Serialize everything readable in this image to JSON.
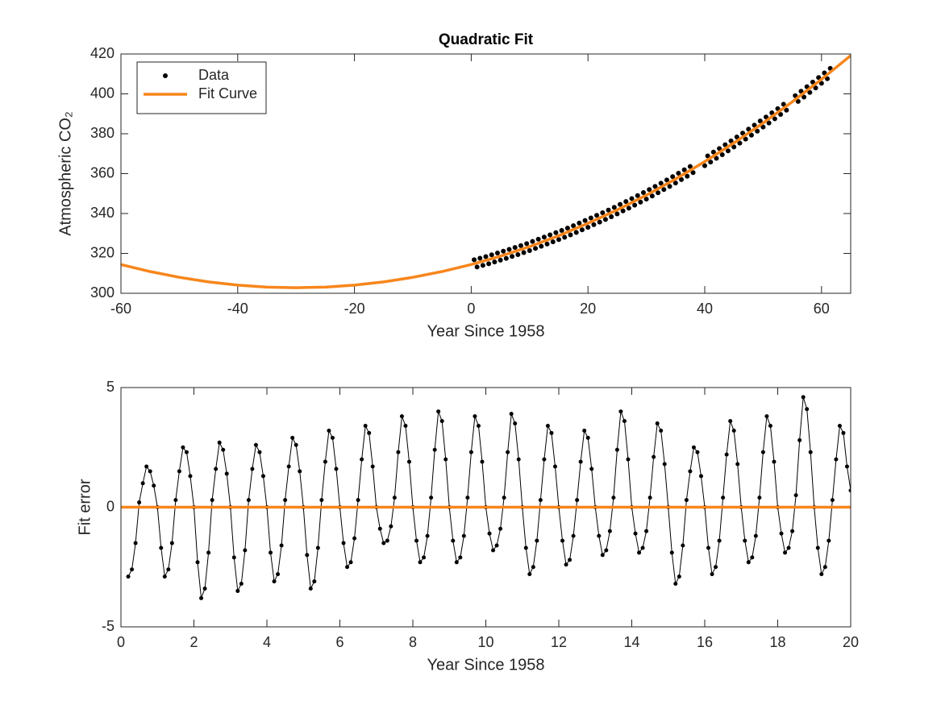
{
  "chart_data": [
    {
      "type": "line",
      "title": "Quadratic Fit",
      "xlabel": "Year Since 1958",
      "ylabel": "Atmospheric CO₂",
      "xlim": [
        -60,
        65
      ],
      "ylim": [
        300,
        420
      ],
      "xticks": [
        -60,
        -40,
        -20,
        0,
        20,
        40,
        60
      ],
      "yticks": [
        300,
        320,
        340,
        360,
        380,
        400,
        420
      ],
      "legend": "upper left",
      "series": [
        {
          "name": "Data",
          "color": "#000000",
          "mode": "markers",
          "x": [
            0.5,
            1,
            1.5,
            2,
            2.5,
            3,
            3.5,
            4,
            4.5,
            5,
            5.5,
            6,
            6.5,
            7,
            7.5,
            8,
            8.5,
            9,
            9.5,
            10,
            10.5,
            11,
            11.5,
            12,
            12.5,
            13,
            13.5,
            14,
            14.5,
            15,
            15.5,
            16,
            16.5,
            17,
            17.5,
            18,
            18.5,
            19,
            19.5,
            20,
            20.5,
            21,
            21.5,
            22,
            22.5,
            23,
            23.5,
            24,
            24.5,
            25,
            25.5,
            26,
            26.5,
            27,
            27.5,
            28,
            28.5,
            29,
            29.5,
            30,
            30.5,
            31,
            31.5,
            32,
            32.5,
            33,
            33.5,
            34,
            34.5,
            35,
            35.5,
            36,
            36.5,
            37,
            37.5,
            38,
            40,
            40.5,
            41,
            41.5,
            42,
            42.5,
            43,
            43.5,
            44,
            44.5,
            45,
            45.5,
            46,
            46.5,
            47,
            47.5,
            48,
            48.5,
            49,
            49.5,
            50,
            50.5,
            51,
            51.5,
            52,
            52.5,
            53,
            53.5,
            54,
            55.5,
            56,
            56.5,
            57,
            57.5,
            58,
            58.5,
            59,
            59.5,
            60,
            60.5,
            61,
            61.5
          ],
          "values": [
            316.8,
            313.2,
            317.6,
            314.0,
            318.4,
            314.8,
            319.3,
            315.7,
            320.2,
            316.6,
            321.1,
            317.5,
            322.0,
            318.5,
            323.0,
            319.4,
            323.9,
            320.4,
            324.9,
            321.4,
            326.0,
            322.5,
            327.1,
            323.6,
            328.2,
            324.7,
            329.3,
            325.8,
            330.4,
            326.9,
            331.5,
            328.1,
            332.7,
            329.3,
            333.9,
            330.5,
            335.2,
            331.8,
            336.5,
            333.1,
            337.8,
            334.4,
            339.1,
            335.7,
            340.4,
            337.0,
            341.7,
            338.4,
            343.1,
            339.8,
            344.6,
            341.3,
            346.0,
            342.7,
            347.5,
            344.2,
            349.0,
            345.7,
            350.5,
            347.2,
            352.0,
            348.8,
            353.6,
            350.4,
            355.2,
            352.0,
            356.8,
            353.6,
            358.5,
            355.3,
            360.2,
            357.0,
            361.9,
            358.7,
            363.6,
            360.5,
            364.0,
            368.9,
            365.8,
            370.8,
            367.7,
            372.6,
            369.5,
            374.5,
            371.4,
            376.4,
            373.4,
            378.4,
            375.3,
            380.3,
            377.3,
            382.3,
            379.3,
            384.3,
            381.3,
            386.4,
            383.4,
            388.4,
            385.4,
            390.5,
            387.5,
            392.6,
            389.7,
            394.8,
            391.8,
            399.1,
            396.2,
            401.3,
            398.4,
            403.6,
            400.7,
            405.9,
            403.0,
            408.2,
            405.3,
            410.5,
            407.6,
            412.8
          ]
        },
        {
          "name": "Fit Curve",
          "color": "#f7861c",
          "mode": "line",
          "x": [
            -60,
            -55,
            -50,
            -45,
            -40,
            -35,
            -30,
            -25,
            -20,
            -15,
            -10,
            -5,
            0,
            5,
            10,
            15,
            20,
            25,
            30,
            35,
            40,
            45,
            50,
            55,
            60,
            65
          ],
          "values": [
            314.4,
            310.9,
            308.0,
            305.7,
            304.1,
            303.1,
            302.8,
            303.1,
            304.1,
            305.7,
            308.0,
            310.9,
            314.4,
            318.6,
            323.4,
            328.9,
            335.1,
            341.8,
            349.2,
            357.3,
            366.0,
            375.4,
            385.4,
            396.0,
            407.3,
            419.2
          ]
        }
      ]
    },
    {
      "type": "line",
      "xlabel": "Year Since 1958",
      "ylabel": "Fit error",
      "xlim": [
        0,
        20
      ],
      "ylim": [
        -5,
        5
      ],
      "xticks": [
        0,
        2,
        4,
        6,
        8,
        10,
        12,
        14,
        16,
        18,
        20
      ],
      "yticks": [
        -5,
        0,
        5
      ],
      "series": [
        {
          "color": "#000000",
          "mode": "line+markers",
          "x": [
            0.2,
            0.3,
            0.4,
            0.5,
            0.6,
            0.7,
            0.8,
            0.9,
            1.0,
            1.1,
            1.2,
            1.3,
            1.4,
            1.5,
            1.6,
            1.7,
            1.8,
            1.9,
            2.0,
            2.1,
            2.2,
            2.3,
            2.4,
            2.5,
            2.6,
            2.7,
            2.8,
            2.9,
            3.0,
            3.1,
            3.2,
            3.3,
            3.4,
            3.5,
            3.6,
            3.7,
            3.8,
            3.9,
            4.0,
            4.1,
            4.2,
            4.3,
            4.4,
            4.5,
            4.6,
            4.7,
            4.8,
            4.9,
            5.0,
            5.1,
            5.2,
            5.3,
            5.4,
            5.5,
            5.6,
            5.7,
            5.8,
            5.9,
            6.0,
            6.1,
            6.2,
            6.3,
            6.4,
            6.5,
            6.6,
            6.7,
            6.8,
            6.9,
            7.0,
            7.1,
            7.2,
            7.3,
            7.4,
            7.5,
            7.6,
            7.7,
            7.8,
            7.9,
            8.0,
            8.1,
            8.2,
            8.3,
            8.4,
            8.5,
            8.6,
            8.7,
            8.8,
            8.9,
            9.0,
            9.1,
            9.2,
            9.3,
            9.4,
            9.5,
            9.6,
            9.7,
            9.8,
            9.9,
            10.0,
            10.1,
            10.2,
            10.3,
            10.4,
            10.5,
            10.6,
            10.7,
            10.8,
            10.9,
            11.0,
            11.1,
            11.2,
            11.3,
            11.4,
            11.5,
            11.6,
            11.7,
            11.8,
            11.9,
            12.0,
            12.1,
            12.2,
            12.3,
            12.4,
            12.5,
            12.6,
            12.7,
            12.8,
            12.9,
            13.0,
            13.1,
            13.2,
            13.3,
            13.4,
            13.5,
            13.6,
            13.7,
            13.8,
            13.9,
            14.0,
            14.1,
            14.2,
            14.3,
            14.4,
            14.5,
            14.6,
            14.7,
            14.8,
            14.9,
            15.0,
            15.1,
            15.2,
            15.3,
            15.4,
            15.5,
            15.6,
            15.7,
            15.8,
            15.9,
            16.0,
            16.1,
            16.2,
            16.3,
            16.4,
            16.5,
            16.6,
            16.7,
            16.8,
            16.9,
            17.0,
            17.1,
            17.2,
            17.3,
            17.4,
            17.5,
            17.6,
            17.7,
            17.8,
            17.9,
            18.0,
            18.1,
            18.2,
            18.3,
            18.4,
            18.5,
            18.6,
            18.7,
            18.8,
            18.9,
            19.0,
            19.1,
            19.2,
            19.3,
            19.4,
            19.5,
            19.6,
            19.7,
            19.8,
            19.9,
            20.0
          ],
          "values": [
            -2.9,
            -2.6,
            -1.5,
            0.2,
            1.0,
            1.7,
            1.5,
            0.9,
            0,
            -1.7,
            -2.9,
            -2.6,
            -1.5,
            0.3,
            1.5,
            2.5,
            2.3,
            1.3,
            0,
            -2.3,
            -3.8,
            -3.4,
            -1.9,
            0.3,
            1.6,
            2.7,
            2.4,
            1.4,
            0,
            -2.1,
            -3.5,
            -3.2,
            -1.8,
            0.3,
            1.6,
            2.6,
            2.3,
            1.3,
            0,
            -1.9,
            -3.1,
            -2.8,
            -1.6,
            0.3,
            1.7,
            2.9,
            2.6,
            1.5,
            0,
            -2.0,
            -3.4,
            -3.1,
            -1.7,
            0.3,
            1.9,
            3.2,
            2.9,
            1.6,
            0,
            -1.5,
            -2.5,
            -2.3,
            -1.3,
            0.3,
            2.0,
            3.4,
            3.1,
            1.7,
            0,
            -0.9,
            -1.5,
            -1.4,
            -0.8,
            0.4,
            2.3,
            3.8,
            3.4,
            1.9,
            0,
            -1.4,
            -2.3,
            -2.1,
            -1.2,
            0.4,
            2.4,
            4.0,
            3.6,
            2.0,
            0,
            -1.4,
            -2.3,
            -2.1,
            -1.2,
            0.4,
            2.3,
            3.8,
            3.4,
            1.9,
            0,
            -1.1,
            -1.8,
            -1.6,
            -0.9,
            0.4,
            2.3,
            3.9,
            3.5,
            2.0,
            0,
            -1.7,
            -2.8,
            -2.5,
            -1.4,
            0.3,
            2.0,
            3.4,
            3.1,
            1.7,
            0,
            -1.4,
            -2.4,
            -2.2,
            -1.2,
            0.3,
            1.9,
            3.2,
            2.9,
            1.6,
            0,
            -1.2,
            -2.0,
            -1.8,
            -1.0,
            0.4,
            2.4,
            4.0,
            3.6,
            2.0,
            0,
            -1.1,
            -1.9,
            -1.7,
            -1.0,
            0.4,
            2.1,
            3.5,
            3.2,
            1.8,
            0,
            -1.9,
            -3.2,
            -2.9,
            -1.6,
            0.3,
            1.5,
            2.5,
            2.3,
            1.3,
            0,
            -1.7,
            -2.8,
            -2.5,
            -1.4,
            0.4,
            2.2,
            3.6,
            3.2,
            1.8,
            0,
            -1.4,
            -2.3,
            -2.1,
            -1.2,
            0.4,
            2.3,
            3.8,
            3.4,
            1.9,
            0,
            -1.1,
            -1.9,
            -1.7,
            -1.0,
            0.5,
            2.8,
            4.6,
            4.1,
            2.3,
            0,
            -1.7,
            -2.8,
            -2.5,
            -1.4,
            0.3,
            2.0,
            3.4,
            3.1,
            1.7,
            0.7
          ]
        },
        {
          "color": "#f7861c",
          "mode": "line",
          "x": [
            0,
            20
          ],
          "values": [
            0,
            0
          ]
        }
      ]
    }
  ]
}
